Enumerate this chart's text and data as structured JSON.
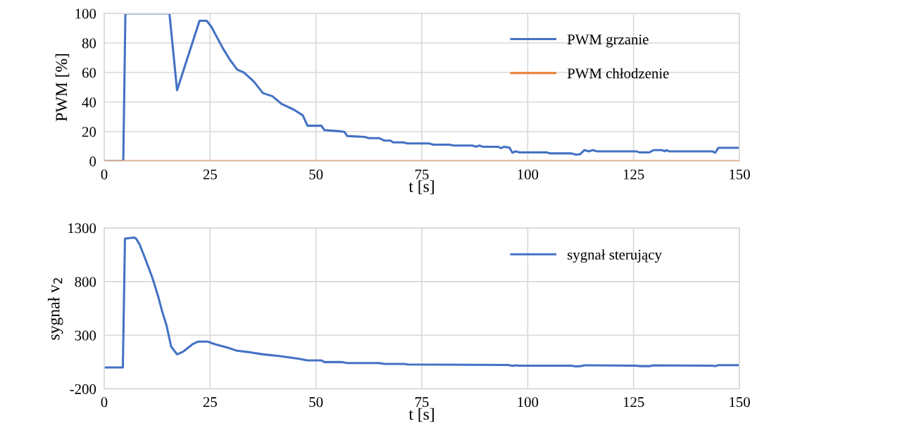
{
  "chart_data": [
    {
      "type": "line",
      "xlabel": "t [s]",
      "ylabel": "PWM [%]",
      "xlim": [
        0,
        150
      ],
      "xticks": [
        0,
        25,
        50,
        75,
        100,
        125,
        150
      ],
      "ylim": [
        0,
        100
      ],
      "yticks": [
        0,
        20,
        40,
        60,
        80,
        100
      ],
      "grid": true,
      "legend": "top right",
      "line_style": "solid",
      "series": [
        {
          "name": "PWM grzanie",
          "color": "#4472c4",
          "x": [
            0,
            4.5,
            5.0,
            15.4,
            17.2,
            22.5,
            24.2,
            25.3,
            28.0,
            29.7,
            31.4,
            33.0,
            35.3,
            37.5,
            39.7,
            41.9,
            44.7,
            46.9,
            48.0,
            51.3,
            52.0,
            55.4,
            56.7,
            57.4,
            61.5,
            62.5,
            64.9,
            66.2,
            67.6,
            68.2,
            70.6,
            71.6,
            76.7,
            77.7,
            81.5,
            82.5,
            86.9,
            87.9,
            88.6,
            89.3,
            93.0,
            93.7,
            94.4,
            95.7,
            96.4,
            97.1,
            98.1,
            104.6,
            105.2,
            110.3,
            111.4,
            112.4,
            113.4,
            114.4,
            115.4,
            116.4,
            125.6,
            126.5,
            128.7,
            129.7,
            131.7,
            132.4,
            132.7,
            133.4,
            143.6,
            144.3,
            145.0,
            150
          ],
          "values": [
            0,
            0,
            100,
            100,
            48,
            95,
            95,
            91,
            76.5,
            68.6,
            62,
            60,
            54,
            46,
            44,
            38.7,
            35,
            31,
            24,
            24,
            21,
            20.3,
            19.9,
            17,
            16.4,
            15.6,
            15.6,
            13.9,
            13.9,
            12.7,
            12.7,
            12,
            12,
            11.2,
            11.2,
            10.6,
            10.6,
            9.8,
            10.6,
            9.8,
            9.8,
            8.8,
            9.8,
            9.2,
            5.7,
            6.7,
            5.9,
            5.9,
            5.3,
            5.3,
            4.4,
            4.8,
            7.5,
            6.7,
            7.5,
            6.7,
            6.7,
            5.9,
            5.9,
            7.5,
            7.5,
            6.7,
            7.5,
            6.7,
            6.7,
            5.7,
            9,
            9
          ]
        },
        {
          "name": "PWM chłodzenie",
          "color": "#ed7d31",
          "x": [
            0,
            150
          ],
          "values": [
            0,
            0
          ]
        }
      ]
    },
    {
      "type": "line",
      "xlabel": "t [s]",
      "ylabel": "sygnał v$_{2}$",
      "xlim": [
        0,
        150
      ],
      "xticks": [
        0,
        25,
        50,
        75,
        100,
        125,
        150
      ],
      "ylim": [
        -200,
        1300
      ],
      "yticks": [
        -200,
        300,
        800,
        1300
      ],
      "grid": true,
      "legend": "top right",
      "line_style": "solid",
      "series": [
        {
          "name": "sygnał sterujący",
          "color": "#4472c4",
          "x": [
            0,
            4.4,
            4.9,
            7.0,
            7.5,
            8.3,
            9.7,
            11.4,
            12.8,
            13.6,
            14.7,
            15.8,
            17.2,
            18.6,
            20.8,
            22.2,
            24.4,
            26.3,
            29.1,
            31.4,
            34.7,
            37.5,
            41.3,
            45.8,
            48.0,
            51.3,
            52.0,
            56.0,
            57.4,
            64.9,
            66.2,
            71.0,
            71.6,
            95.4,
            96.4,
            97.1,
            98.1,
            110.3,
            111.4,
            112.4,
            113.4,
            115.4,
            125.6,
            126.6,
            128.7,
            129.7,
            143.6,
            144.3,
            145.0,
            150
          ],
          "values": [
            0,
            0,
            1201,
            1211,
            1201,
            1151,
            1012,
            833,
            654,
            534,
            394,
            195,
            122,
            146,
            215,
            241,
            241,
            215,
            185,
            155,
            140,
            122,
            106,
            82,
            65,
            65,
            50,
            50,
            41,
            41,
            33,
            33,
            28,
            23,
            14,
            19,
            16,
            16,
            9,
            12,
            19,
            19,
            16,
            12,
            12,
            19,
            16,
            12,
            21,
            21
          ]
        }
      ]
    }
  ]
}
